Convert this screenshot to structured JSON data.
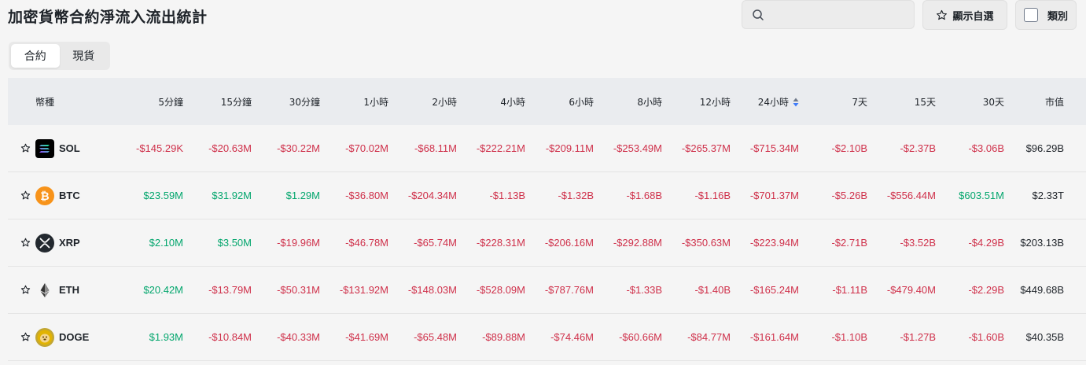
{
  "page": {
    "title": "加密貨幣合約淨流入流出統計"
  },
  "search": {
    "placeholder": "",
    "value": ""
  },
  "watchlist": {
    "label": "顯示自選"
  },
  "category": {
    "label": "類別"
  },
  "tabs": [
    {
      "label": "合約",
      "active": true
    },
    {
      "label": "現貨",
      "active": false
    }
  ],
  "table": {
    "headers": {
      "coin": "幣種",
      "m5": "5分鐘",
      "m15": "15分鐘",
      "m30": "30分鐘",
      "h1": "1小時",
      "h2": "2小時",
      "h4": "4小時",
      "h6": "6小時",
      "h8": "8小時",
      "h12": "12小時",
      "h24": "24小時",
      "d7": "7天",
      "d15": "15天",
      "d30": "30天",
      "mcap": "市值"
    },
    "rows": [
      {
        "symbol": "SOL",
        "icon": "sol-icon",
        "values": [
          "-$145.29K",
          "-$20.63M",
          "-$30.22M",
          "-$70.02M",
          "-$68.11M",
          "-$222.21M",
          "-$209.11M",
          "-$253.49M",
          "-$265.37M",
          "-$715.34M",
          "-$2.10B",
          "-$2.37B",
          "-$3.06B"
        ],
        "mcap": "$96.29B"
      },
      {
        "symbol": "BTC",
        "icon": "btc-icon",
        "values": [
          "$23.59M",
          "$31.92M",
          "$1.29M",
          "-$36.80M",
          "-$204.34M",
          "-$1.13B",
          "-$1.32B",
          "-$1.68B",
          "-$1.16B",
          "-$701.37M",
          "-$5.26B",
          "-$556.44M",
          "$603.51M"
        ],
        "mcap": "$2.33T"
      },
      {
        "symbol": "XRP",
        "icon": "xrp-icon",
        "values": [
          "$2.10M",
          "$3.50M",
          "-$19.96M",
          "-$46.78M",
          "-$65.74M",
          "-$228.31M",
          "-$206.16M",
          "-$292.88M",
          "-$350.63M",
          "-$223.94M",
          "-$2.71B",
          "-$3.52B",
          "-$4.29B"
        ],
        "mcap": "$203.13B"
      },
      {
        "symbol": "ETH",
        "icon": "eth-icon",
        "values": [
          "$20.42M",
          "-$13.79M",
          "-$50.31M",
          "-$131.92M",
          "-$148.03M",
          "-$528.09M",
          "-$787.76M",
          "-$1.33B",
          "-$1.40B",
          "-$165.24M",
          "-$1.11B",
          "-$479.40M",
          "-$2.29B"
        ],
        "mcap": "$449.68B"
      },
      {
        "symbol": "DOGE",
        "icon": "doge-icon",
        "values": [
          "$1.93M",
          "-$10.84M",
          "-$40.33M",
          "-$41.69M",
          "-$65.48M",
          "-$89.88M",
          "-$74.46M",
          "-$60.66M",
          "-$84.77M",
          "-$161.64M",
          "-$1.10B",
          "-$1.27B",
          "-$1.60B"
        ],
        "mcap": "$40.35B"
      }
    ]
  },
  "colors": {
    "negative": "#cf304a",
    "positive": "#03a66d",
    "sort_accent": "#3e7bfa"
  }
}
